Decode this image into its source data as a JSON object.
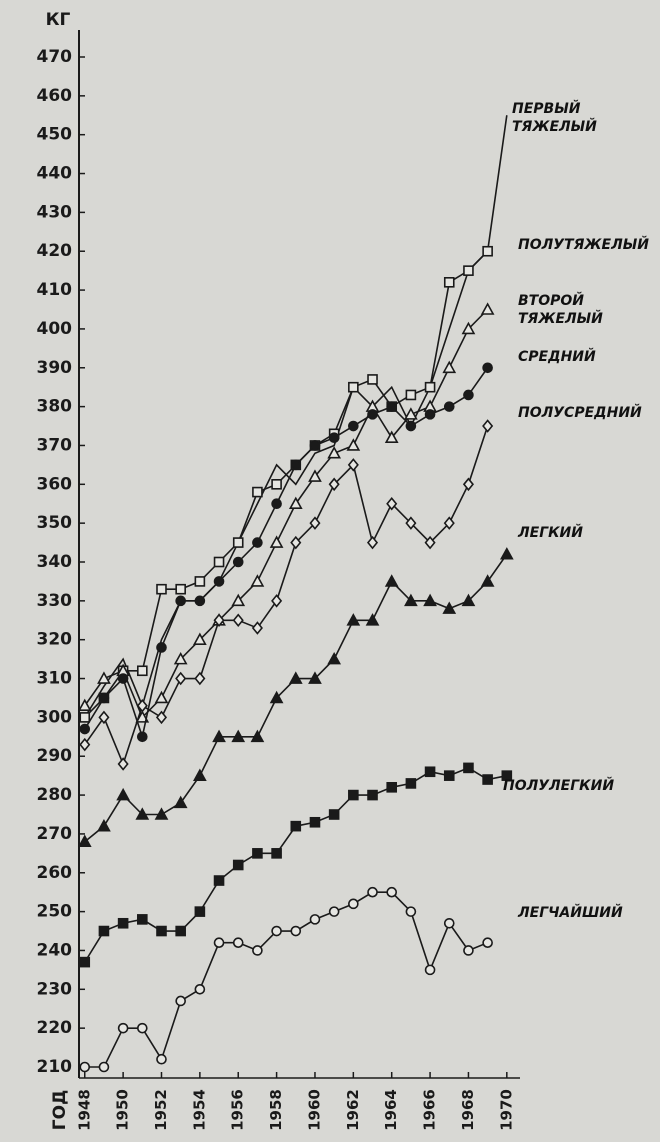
{
  "chart_data": {
    "type": "line",
    "y_label": "КГ",
    "x_label": "ГОД",
    "x": [
      1948,
      1949,
      1950,
      1951,
      1952,
      1953,
      1954,
      1955,
      1956,
      1957,
      1958,
      1959,
      1960,
      1961,
      1962,
      1963,
      1964,
      1965,
      1966,
      1967,
      1968,
      1969,
      1970
    ],
    "xlim": [
      1947.7,
      1971
    ],
    "xticks": [
      1948,
      1950,
      1952,
      1954,
      1956,
      1958,
      1960,
      1962,
      1964,
      1966,
      1968,
      1970
    ],
    "ylim": [
      210,
      470
    ],
    "yticks": [
      210,
      220,
      230,
      240,
      250,
      260,
      270,
      280,
      290,
      300,
      310,
      320,
      330,
      340,
      350,
      360,
      370,
      380,
      390,
      400,
      410,
      420,
      430,
      440,
      450,
      460,
      470
    ],
    "series": [
      {
        "name": "ПЕРВЫЙ ТЯЖЕЛЫЙ",
        "color": "#1a1a1a",
        "marker": "none",
        "values": [
          300,
          308,
          315,
          303,
          320,
          330,
          330,
          335,
          345,
          355,
          365,
          360,
          368,
          370,
          385,
          380,
          385,
          375,
          385,
          400,
          415,
          420,
          455
        ]
      },
      {
        "name": "ПОЛУТЯЖЕЛЫЙ",
        "color": "#1a1a1a",
        "marker": "square-open",
        "values": [
          300,
          305,
          312,
          312,
          333,
          333,
          335,
          340,
          345,
          358,
          360,
          365,
          370,
          373,
          385,
          387,
          380,
          383,
          385,
          412,
          415,
          420,
          null
        ]
      },
      {
        "name": "ВТОРОЙ ТЯЖЕЛЫЙ",
        "color": "#1a1a1a",
        "marker": "triangle-open",
        "values": [
          303,
          310,
          312,
          300,
          305,
          315,
          320,
          325,
          330,
          335,
          345,
          355,
          362,
          368,
          370,
          380,
          372,
          378,
          380,
          390,
          400,
          405,
          null
        ]
      },
      {
        "name": "СРЕДНИЙ",
        "color": "#1a1a1a",
        "marker": "circle",
        "values": [
          297,
          305,
          310,
          295,
          318,
          330,
          330,
          335,
          340,
          345,
          355,
          365,
          370,
          372,
          375,
          378,
          380,
          375,
          378,
          380,
          383,
          390,
          null
        ]
      },
      {
        "name": "ПОЛУСРЕДНИЙ",
        "color": "#1a1a1a",
        "marker": "diamond-open",
        "values": [
          293,
          300,
          288,
          303,
          300,
          310,
          310,
          325,
          325,
          323,
          330,
          345,
          350,
          360,
          365,
          345,
          355,
          350,
          345,
          350,
          360,
          375,
          null
        ]
      },
      {
        "name": "ЛЕГКИЙ",
        "color": "#1a1a1a",
        "marker": "triangle",
        "values": [
          268,
          272,
          280,
          275,
          275,
          278,
          285,
          295,
          295,
          295,
          305,
          310,
          310,
          315,
          325,
          325,
          335,
          330,
          330,
          328,
          330,
          335,
          342
        ]
      },
      {
        "name": "ПОЛУЛЕГКИЙ",
        "color": "#1a1a1a",
        "marker": "square",
        "values": [
          237,
          245,
          247,
          248,
          245,
          245,
          250,
          258,
          262,
          265,
          265,
          272,
          273,
          275,
          280,
          280,
          282,
          283,
          286,
          285,
          287,
          284,
          285
        ]
      },
      {
        "name": "ЛЕГЧАЙШИЙ",
        "color": "#1a1a1a",
        "marker": "circle-open",
        "values": [
          210,
          210,
          220,
          220,
          212,
          227,
          230,
          242,
          242,
          240,
          245,
          245,
          248,
          250,
          252,
          255,
          255,
          250,
          235,
          247,
          240,
          242,
          null
        ]
      }
    ]
  }
}
